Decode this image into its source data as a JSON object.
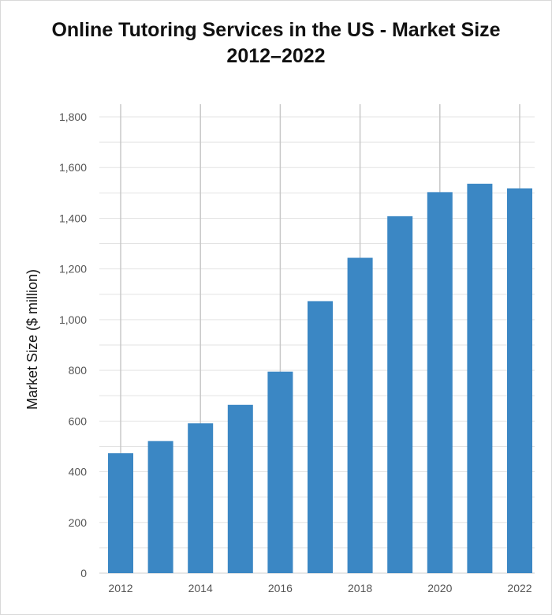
{
  "chart_data": {
    "type": "bar",
    "title_lines": [
      "Online Tutoring Services in the US - Market Size",
      "2012–2022"
    ],
    "xlabel": "",
    "ylabel": "Market Size ($ million)",
    "categories": [
      "2012",
      "2013",
      "2014",
      "2015",
      "2016",
      "2017",
      "2018",
      "2019",
      "2020",
      "2021",
      "2022"
    ],
    "x_tick_labels": [
      "2012",
      "2014",
      "2016",
      "2018",
      "2020",
      "2022"
    ],
    "y_tick_labels": [
      "0",
      "200",
      "400",
      "600",
      "800",
      "1,000",
      "1,200",
      "1,400",
      "1,600",
      "1,800"
    ],
    "series": [
      {
        "values": [
          473,
          521,
          591,
          664,
          795,
          1073,
          1244,
          1408,
          1503,
          1536,
          1518
        ]
      }
    ],
    "ylim": [
      0,
      1800
    ],
    "grid": true,
    "bar_color": "#3b87c4",
    "grid_color": "#e3e3e3",
    "tick_color": "#c8c8c8"
  }
}
